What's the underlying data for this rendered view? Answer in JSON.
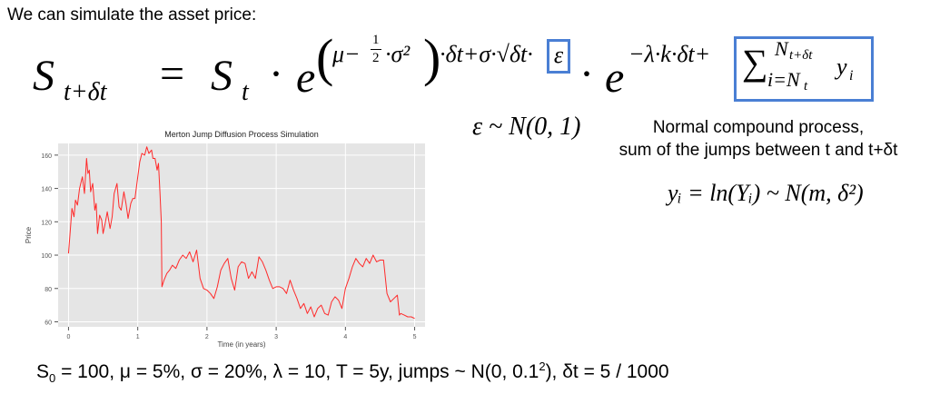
{
  "intro_text": "We can simulate the asset price:",
  "formula": {
    "lhs_S": "S",
    "lhs_sub": "t+δt",
    "eq": "=",
    "S_t": "S",
    "S_t_sub": "t",
    "dot1": "·",
    "e1": "e",
    "exp1_mu": "μ−",
    "exp1_half_num": "1",
    "exp1_half_den": "2",
    "exp1_sigma2": "·σ²",
    "exp1_rest": "·δt+σ·√δt·",
    "exp1_eps": "ε",
    "dot2": "·",
    "e2": "e",
    "exp2": "−λ·k·δt+",
    "sum_sign": "∑",
    "sum_upper": "N",
    "sum_upper_sub": "t+δt",
    "sum_lower": "i=N",
    "sum_lower_sub": "t",
    "sum_term": "y",
    "sum_term_sub": "i"
  },
  "eps_dist": "ε ~ N(0, 1)",
  "compound_line1": "Normal compound process,",
  "compound_line2": "sum of the jumps between t and t+δt",
  "yi_eq": "yᵢ = ln(Yᵢ) ~ N(m, δ²)",
  "params": {
    "S_sym": "S",
    "S_sub": "0",
    "part1": " = 100, μ = 5%, σ = 20%, λ = 10, T = 5y, jumps ~ N(0, 0.1",
    "sup": "2",
    "part2": "), δt = 5 / 1000"
  },
  "colors": {
    "line": "#ff2a2a",
    "plot_bg": "#e5e5e5",
    "box": "#4a7fd4"
  },
  "chart_data": {
    "type": "line",
    "title": "Merton Jump Diffusion Process Simulation",
    "xlabel": "Time (in years)",
    "ylabel": "Price",
    "xlim": [
      -0.15,
      5.15
    ],
    "ylim": [
      57,
      167
    ],
    "xticks": [
      0,
      1,
      2,
      3,
      4,
      5
    ],
    "yticks": [
      60,
      80,
      100,
      120,
      140,
      160
    ],
    "grid": true,
    "series": [
      {
        "x": [
          0.0,
          0.02,
          0.05,
          0.08,
          0.1,
          0.13,
          0.16,
          0.2,
          0.23,
          0.26,
          0.28,
          0.3,
          0.32,
          0.35,
          0.38,
          0.4,
          0.42,
          0.45,
          0.48,
          0.5,
          0.53,
          0.56,
          0.6,
          0.63,
          0.66,
          0.7,
          0.73,
          0.76,
          0.8,
          0.83,
          0.86,
          0.9,
          0.93,
          0.96,
          1.0,
          1.03,
          1.06,
          1.1,
          1.13,
          1.16,
          1.2,
          1.22,
          1.25,
          1.28,
          1.3,
          1.32,
          1.34,
          1.35,
          1.38,
          1.42,
          1.46,
          1.5,
          1.55,
          1.6,
          1.65,
          1.7,
          1.75,
          1.8,
          1.85,
          1.9,
          1.95,
          2.0,
          2.05,
          2.1,
          2.15,
          2.2,
          2.25,
          2.3,
          2.35,
          2.4,
          2.45,
          2.5,
          2.55,
          2.6,
          2.65,
          2.7,
          2.75,
          2.8,
          2.85,
          2.9,
          2.95,
          3.0,
          3.05,
          3.1,
          3.15,
          3.2,
          3.25,
          3.3,
          3.35,
          3.4,
          3.45,
          3.5,
          3.55,
          3.6,
          3.65,
          3.7,
          3.75,
          3.8,
          3.85,
          3.9,
          3.95,
          4.0,
          4.05,
          4.1,
          4.15,
          4.2,
          4.25,
          4.3,
          4.35,
          4.4,
          4.45,
          4.5,
          4.55,
          4.6,
          4.65,
          4.7,
          4.75,
          4.78,
          4.8,
          4.85,
          4.9,
          4.95,
          5.0
        ],
        "y": [
          101,
          112,
          128,
          123,
          133,
          130,
          140,
          147,
          137,
          158,
          149,
          151,
          138,
          143,
          127,
          131,
          113,
          124,
          121,
          113,
          119,
          126,
          116,
          123,
          137,
          143,
          129,
          127,
          138,
          131,
          122,
          131,
          134,
          134,
          147,
          156,
          161,
          160,
          165,
          161,
          163,
          158,
          158,
          151,
          155,
          138,
          120,
          81,
          85,
          89,
          91,
          94,
          92,
          97,
          100,
          98,
          102,
          96,
          103,
          86,
          80,
          79,
          77,
          74,
          81,
          91,
          95,
          98,
          86,
          79,
          93,
          96,
          95,
          86,
          90,
          86,
          99,
          96,
          91,
          85,
          80,
          81,
          81,
          80,
          77,
          85,
          79,
          74,
          68,
          71,
          65,
          69,
          63,
          68,
          70,
          65,
          64,
          72,
          75,
          73,
          68,
          80,
          86,
          93,
          98,
          95,
          93,
          98,
          95,
          100,
          96,
          97,
          97,
          77,
          72,
          74,
          76,
          64,
          65,
          64,
          63,
          63,
          62
        ]
      }
    ]
  }
}
